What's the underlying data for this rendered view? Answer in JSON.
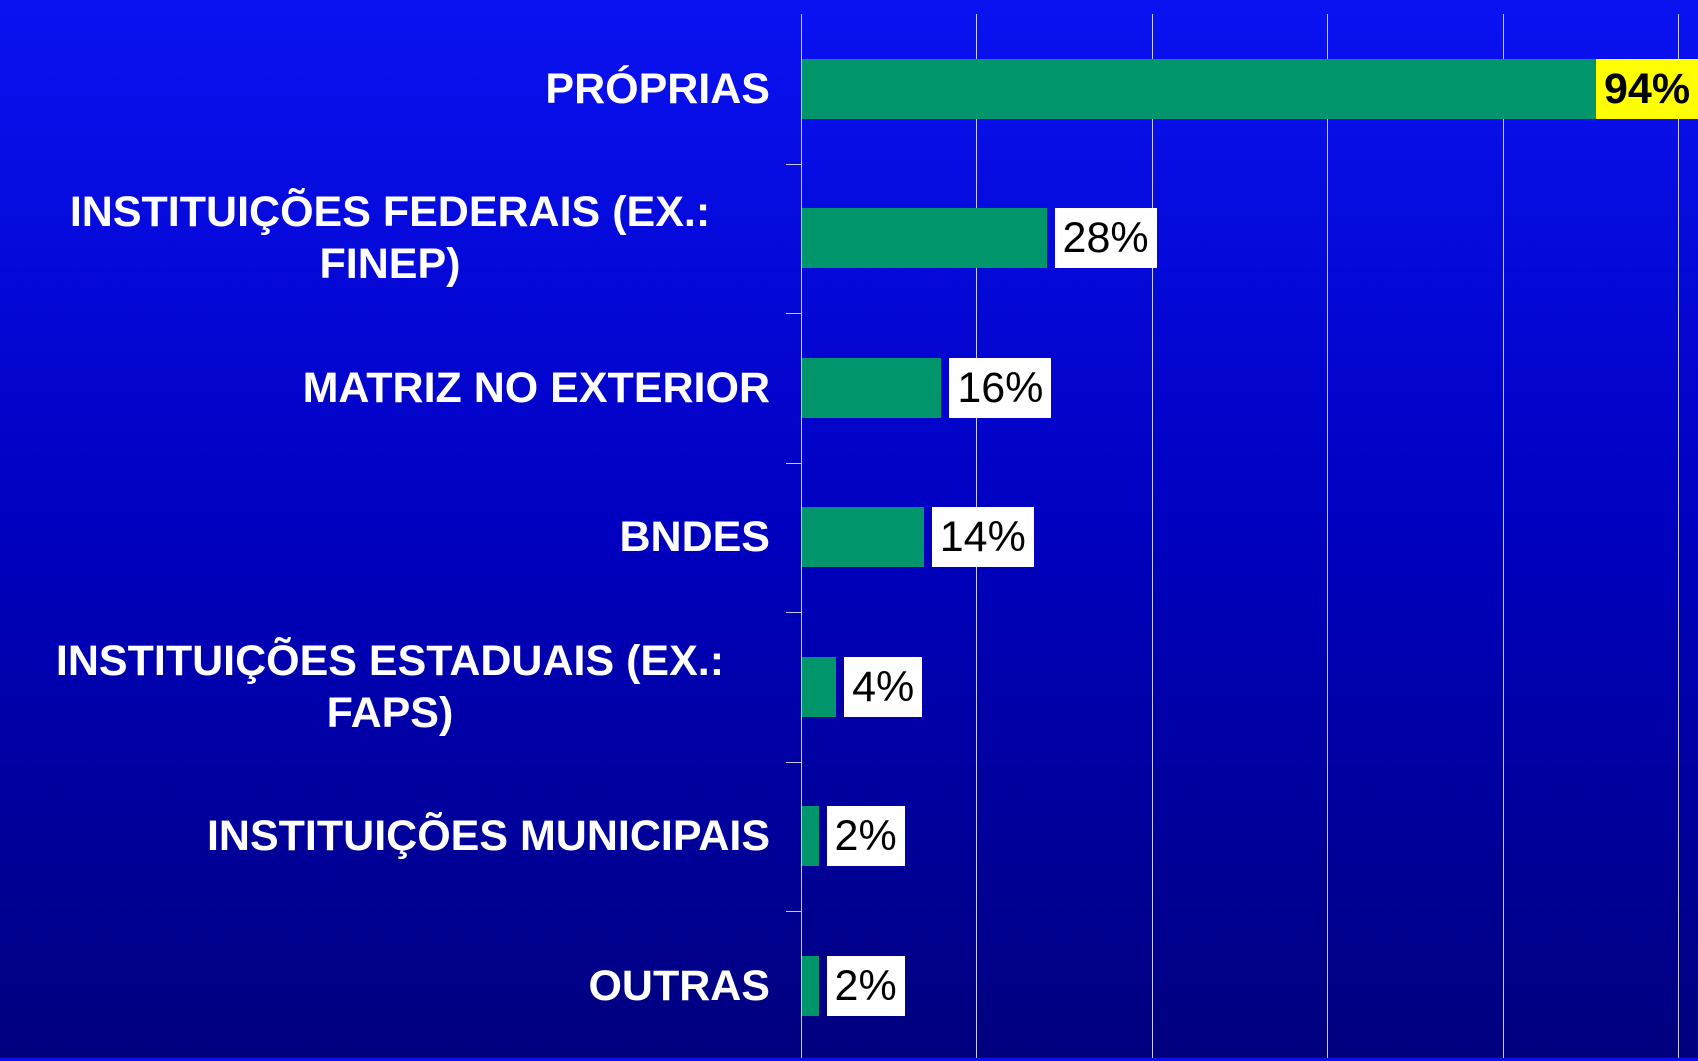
{
  "chart_data": {
    "type": "barh",
    "categories": [
      "PRÓPRIAS",
      "INSTITUIÇÕES FEDERAIS (EX.: FINEP)",
      "MATRIZ NO EXTERIOR",
      "BNDES",
      "INSTITUIÇÕES ESTADUAIS (EX.: FAPS)",
      "INSTITUIÇÕES MUNICIPAIS",
      "OUTRAS"
    ],
    "values": [
      94,
      28,
      16,
      14,
      4,
      2,
      2
    ],
    "value_labels": [
      "94%",
      "28%",
      "16%",
      "14%",
      "4%",
      "2%",
      "2%"
    ],
    "value_label_backgrounds": [
      "#ffff00",
      "#ffffff",
      "#ffffff",
      "#ffffff",
      "#ffffff",
      "#ffffff",
      "#ffffff"
    ],
    "value_label_bold": [
      true,
      false,
      false,
      false,
      false,
      false,
      false
    ],
    "color": "#00956a",
    "xlim": [
      0,
      100
    ],
    "xticks": [
      0,
      20,
      40,
      60,
      80,
      100
    ],
    "grid": true
  }
}
